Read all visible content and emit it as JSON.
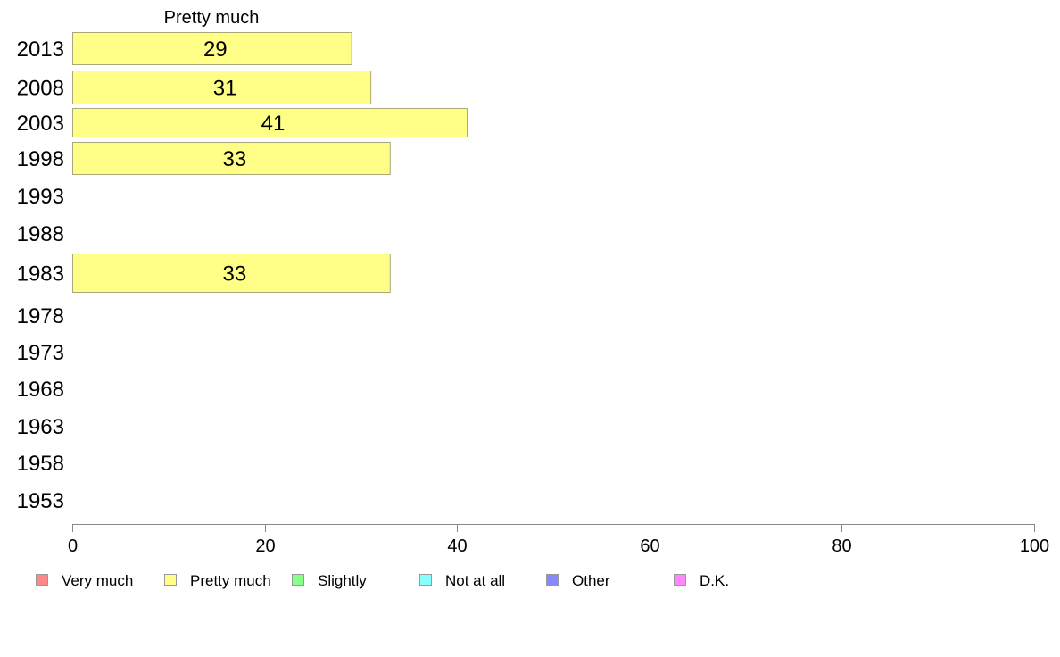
{
  "chart_data": {
    "type": "bar",
    "orientation": "horizontal",
    "title": "",
    "xlabel": "",
    "ylabel": "",
    "xlim": [
      0,
      100
    ],
    "x_ticks": [
      "0",
      "20",
      "40",
      "60",
      "80",
      "100"
    ],
    "grid": false,
    "legend_position": "bottom",
    "categories": [
      "2013",
      "2008",
      "2003",
      "1998",
      "1993",
      "1988",
      "1983",
      "1978",
      "1973",
      "1968",
      "1963",
      "1958",
      "1953"
    ],
    "series": [
      {
        "name": "Pretty much",
        "color": "#ffff88",
        "values": [
          29,
          31,
          41,
          33,
          null,
          null,
          33,
          null,
          null,
          null,
          null,
          null,
          null
        ],
        "value_labels": [
          "29",
          "31",
          "41",
          "33",
          "",
          "",
          "33",
          "",
          "",
          "",
          "",
          "",
          ""
        ]
      }
    ],
    "legend": [
      {
        "label": "Very much",
        "color": "#ff8888"
      },
      {
        "label": "Pretty much",
        "color": "#ffff88"
      },
      {
        "label": "Slightly",
        "color": "#88ff88"
      },
      {
        "label": "Not at all",
        "color": "#88ffff"
      },
      {
        "label": "Other",
        "color": "#8888ff"
      },
      {
        "label": "D.K.",
        "color": "#ff88ff"
      }
    ]
  }
}
